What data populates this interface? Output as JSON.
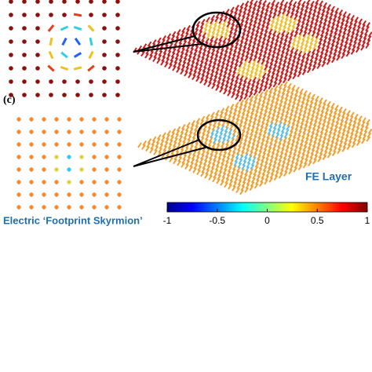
{
  "panel_label": "(c)",
  "layer_label": "FE Layer",
  "caption": "Electric ‘Footprint Skyrmion’",
  "colorbar": {
    "lim": [
      -1,
      1
    ],
    "ticks": [
      -1,
      -0.5,
      0,
      0.5,
      1
    ]
  }
}
